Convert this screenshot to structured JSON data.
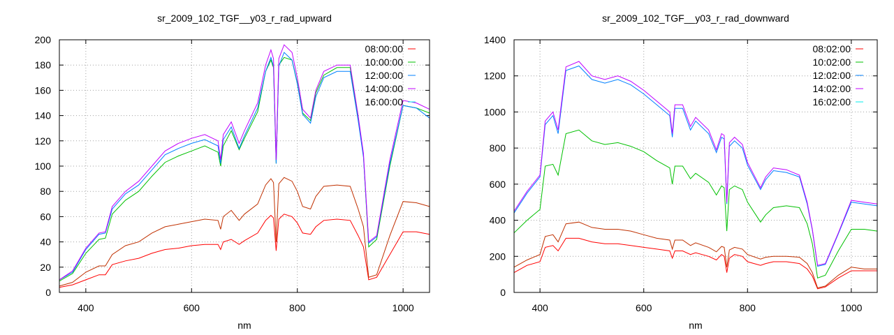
{
  "chart_data": [
    {
      "type": "line",
      "title": "sr_2009_102_TGF__y03_r_rad_upward",
      "xlabel": "nm",
      "ylabel": "",
      "xlim": [
        350,
        1050
      ],
      "ylim": [
        0,
        200
      ],
      "xticks": [
        400,
        600,
        800,
        1000
      ],
      "yticks": [
        0,
        20,
        40,
        60,
        80,
        100,
        120,
        140,
        160,
        180,
        200
      ],
      "grid": true,
      "legend": "top-right",
      "x": [
        350,
        375,
        400,
        425,
        437,
        450,
        475,
        500,
        525,
        550,
        575,
        600,
        625,
        650,
        655,
        660,
        675,
        690,
        700,
        725,
        740,
        750,
        755,
        760,
        765,
        775,
        790,
        800,
        810,
        825,
        835,
        850,
        875,
        900,
        915,
        925,
        935,
        950,
        975,
        1000,
        1025,
        1050
      ],
      "series": [
        {
          "name": "08:00:00",
          "color": "#ff0000",
          "line_color": "#ff0000",
          "values": [
            4,
            6,
            10,
            14,
            14,
            22,
            25,
            27,
            31,
            34,
            35,
            37,
            38,
            38,
            34,
            40,
            42,
            38,
            41,
            47,
            57,
            61,
            59,
            33,
            58,
            62,
            60,
            55,
            47,
            46,
            52,
            57,
            58,
            57,
            45,
            36,
            10,
            12,
            30,
            48,
            48,
            46
          ]
        },
        {
          "name": "10:00:00",
          "color": "#00c000",
          "line_color": "#00c000",
          "values": [
            9,
            15,
            31,
            42,
            43,
            62,
            73,
            80,
            92,
            103,
            108,
            112,
            116,
            111,
            100,
            116,
            128,
            113,
            122,
            143,
            175,
            184,
            178,
            102,
            180,
            186,
            184,
            166,
            142,
            136,
            158,
            172,
            178,
            178,
            138,
            108,
            36,
            42,
            100,
            148,
            146,
            142
          ]
        },
        {
          "name": "12:00:00",
          "color": "#0080ff",
          "line_color": "#0080ff",
          "values": [
            10,
            16,
            34,
            46,
            47,
            66,
            78,
            85,
            97,
            109,
            114,
            118,
            121,
            116,
            102,
            121,
            131,
            114,
            124,
            146,
            175,
            186,
            179,
            102,
            179,
            190,
            184,
            165,
            141,
            134,
            155,
            170,
            175,
            175,
            136,
            107,
            39,
            44,
            102,
            148,
            146,
            138
          ]
        },
        {
          "name": "14:00:00",
          "color": "#c000ff",
          "line_color": "#c000ff",
          "values": [
            10,
            17,
            35,
            47,
            48,
            68,
            80,
            88,
            100,
            112,
            118,
            122,
            125,
            120,
            105,
            125,
            135,
            118,
            128,
            150,
            180,
            192,
            185,
            105,
            185,
            196,
            190,
            170,
            145,
            138,
            160,
            175,
            180,
            180,
            140,
            110,
            40,
            45,
            105,
            152,
            150,
            145
          ]
        },
        {
          "name": "16:00:00",
          "color": "#00eeee",
          "line_color": "#c03000",
          "values": [
            5,
            8,
            16,
            21,
            21,
            30,
            37,
            40,
            47,
            52,
            54,
            56,
            58,
            57,
            50,
            60,
            65,
            57,
            62,
            70,
            85,
            90,
            87,
            40,
            86,
            91,
            88,
            80,
            68,
            66,
            76,
            84,
            85,
            84,
            66,
            52,
            12,
            14,
            45,
            72,
            71,
            68
          ]
        }
      ]
    },
    {
      "type": "line",
      "title": "sr_2009_102_TGF__y03_r_rad_downward",
      "xlabel": "nm",
      "ylabel": "",
      "xlim": [
        350,
        1050
      ],
      "ylim": [
        0,
        1400
      ],
      "xticks": [
        400,
        600,
        800,
        1000
      ],
      "yticks": [
        0,
        200,
        400,
        600,
        800,
        1000,
        1200,
        1400
      ],
      "grid": true,
      "legend": "top-right",
      "x": [
        350,
        375,
        400,
        410,
        425,
        435,
        450,
        475,
        500,
        525,
        550,
        575,
        600,
        625,
        650,
        655,
        660,
        675,
        690,
        700,
        725,
        740,
        750,
        755,
        760,
        765,
        775,
        790,
        800,
        825,
        835,
        850,
        875,
        900,
        915,
        925,
        935,
        950,
        975,
        1000,
        1025,
        1050
      ],
      "series": [
        {
          "name": "08:02:00",
          "color": "#ff0000",
          "line_color": "#ff0000",
          "values": [
            110,
            150,
            170,
            250,
            260,
            230,
            300,
            300,
            280,
            270,
            270,
            260,
            250,
            240,
            230,
            190,
            230,
            230,
            210,
            220,
            200,
            180,
            210,
            200,
            110,
            190,
            210,
            200,
            170,
            150,
            160,
            170,
            170,
            160,
            130,
            90,
            20,
            30,
            80,
            120,
            120,
            120
          ]
        },
        {
          "name": "10:02:00",
          "color": "#00c000",
          "line_color": "#00c000",
          "values": [
            330,
            400,
            460,
            700,
            710,
            650,
            880,
            900,
            840,
            820,
            830,
            810,
            780,
            730,
            690,
            600,
            700,
            700,
            630,
            660,
            610,
            540,
            590,
            580,
            340,
            570,
            590,
            570,
            500,
            390,
            430,
            470,
            480,
            470,
            380,
            270,
            80,
            95,
            230,
            350,
            350,
            340
          ]
        },
        {
          "name": "12:02:00",
          "color": "#0080ff",
          "line_color": "#0080ff",
          "values": [
            440,
            550,
            640,
            930,
            980,
            880,
            1230,
            1255,
            1180,
            1160,
            1180,
            1150,
            1100,
            1040,
            980,
            860,
            1020,
            1020,
            900,
            950,
            880,
            775,
            860,
            850,
            490,
            810,
            840,
            800,
            705,
            570,
            625,
            675,
            665,
            640,
            490,
            345,
            145,
            155,
            325,
            500,
            490,
            480
          ]
        },
        {
          "name": "14:02:00",
          "color": "#c000ff",
          "line_color": "#c000ff",
          "values": [
            450,
            560,
            650,
            950,
            1000,
            900,
            1250,
            1280,
            1200,
            1180,
            1200,
            1170,
            1120,
            1060,
            1000,
            880,
            1040,
            1040,
            920,
            970,
            900,
            790,
            880,
            870,
            500,
            830,
            860,
            820,
            720,
            580,
            640,
            690,
            680,
            650,
            500,
            350,
            150,
            160,
            330,
            510,
            500,
            490
          ]
        },
        {
          "name": "16:02:00",
          "color": "#00eeee",
          "line_color": "#c03000",
          "values": [
            140,
            180,
            210,
            310,
            320,
            280,
            380,
            390,
            360,
            350,
            350,
            340,
            320,
            300,
            290,
            240,
            290,
            290,
            260,
            275,
            250,
            225,
            255,
            250,
            140,
            235,
            250,
            240,
            210,
            185,
            195,
            200,
            200,
            195,
            160,
            110,
            25,
            35,
            95,
            140,
            130,
            130
          ]
        }
      ]
    }
  ]
}
